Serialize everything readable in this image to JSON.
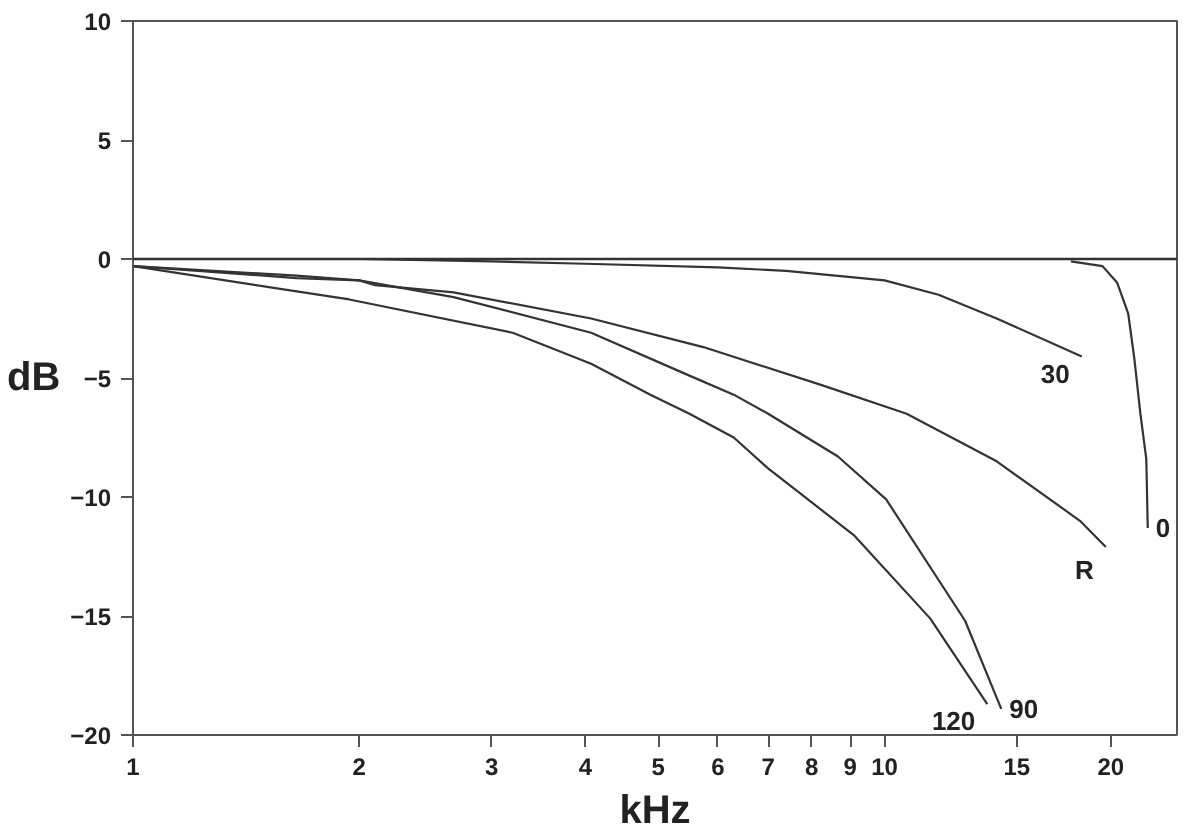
{
  "chart_data": {
    "type": "line",
    "xlabel": "kHz",
    "ylabel": "dB",
    "log": "x",
    "xlim": [
      1,
      24.5
    ],
    "ylim": [
      -20,
      10
    ],
    "xticks": [
      1,
      2,
      3,
      4,
      5,
      6,
      7,
      8,
      9,
      10,
      15,
      20
    ],
    "yticks": [
      -20,
      -15,
      -10,
      -5,
      0,
      5,
      10
    ],
    "grid": false,
    "marker": "none",
    "line_style": "solid",
    "ref_lines": [
      {
        "axis": "y",
        "value": 0,
        "color": "#333333"
      }
    ],
    "series": [
      {
        "name": "0",
        "color": "#333333",
        "x": [
          17.7,
          19.5,
          20.4,
          21.1,
          21.5,
          21.9,
          22.3,
          22.4
        ],
        "values": [
          -0.1,
          -0.3,
          -1.0,
          -2.3,
          -4.2,
          -6.5,
          -8.4,
          -11.3
        ]
      },
      {
        "name": "30",
        "color": "#333333",
        "x": [
          2,
          3,
          4,
          6,
          7.4,
          10,
          11.8,
          14.1,
          18.3
        ],
        "values": [
          0,
          -0.1,
          -0.2,
          -0.35,
          -0.5,
          -0.9,
          -1.5,
          -2.5,
          -4.1
        ]
      },
      {
        "name": "R",
        "color": "#333333",
        "x": [
          1,
          1.65,
          2.0,
          2.1,
          2.67,
          4.07,
          5.74,
          8.25,
          10.7,
          14.1,
          18.2,
          19.7
        ],
        "values": [
          -0.3,
          -0.7,
          -0.9,
          -1.1,
          -1.4,
          -2.5,
          -3.7,
          -5.3,
          -6.5,
          -8.5,
          -11.0,
          -12.1
        ]
      },
      {
        "name": "90",
        "color": "#333333",
        "x": [
          1,
          1.65,
          2.0,
          2.67,
          4.07,
          5.5,
          6.3,
          7.0,
          8.67,
          10.05,
          12.8,
          14.3
        ],
        "values": [
          -0.3,
          -0.8,
          -0.9,
          -1.6,
          -3.1,
          -4.9,
          -5.7,
          -6.5,
          -8.3,
          -10.1,
          -15.2,
          -18.9
        ]
      },
      {
        "name": "120",
        "color": "#333333",
        "x": [
          1,
          1.94,
          3.2,
          4.07,
          4.88,
          5.5,
          6.3,
          7.0,
          9.1,
          11.5,
          13.7
        ],
        "values": [
          -0.3,
          -1.7,
          -3.1,
          -4.4,
          -5.7,
          -6.5,
          -7.5,
          -8.8,
          -11.6,
          -15.1,
          -18.7
        ]
      }
    ]
  }
}
